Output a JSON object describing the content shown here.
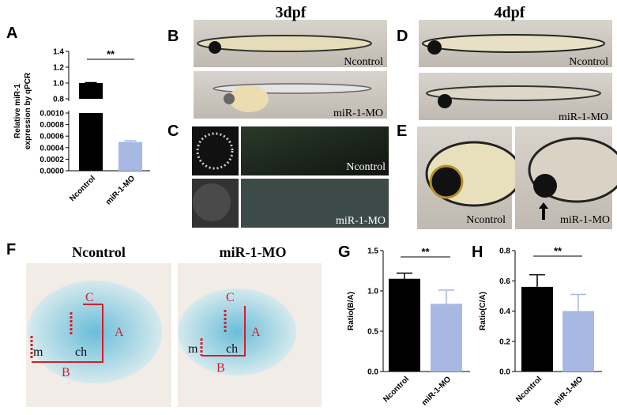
{
  "panel_letters": [
    "A",
    "B",
    "C",
    "D",
    "E",
    "F",
    "G",
    "H"
  ],
  "stage_titles": [
    "3dpf",
    "4dpf"
  ],
  "image_captions": {
    "B": [
      "Ncontrol",
      "miR-1-MO"
    ],
    "C": [
      "Ncontrol",
      "miR-1-MO"
    ],
    "D": [
      "Ncontrol",
      "miR-1-MO"
    ],
    "E": [
      "Ncontrol",
      "miR-1-MO"
    ]
  },
  "panel_F": {
    "titles": [
      "Ncontrol",
      "miR-1-MO"
    ],
    "labels": [
      "C",
      "A",
      "ch",
      "m",
      "B"
    ]
  },
  "chart_data": [
    {
      "type": "bar",
      "ylabel": [
        "Relative miR-1",
        "expression by qPCR"
      ],
      "categories": [
        "Ncontrol",
        "miR-1-MO"
      ],
      "values": [
        1.0,
        0.0005
      ],
      "errors": [
        0.005,
        2e-05
      ],
      "colors": [
        "#000000",
        "#a7b9e2"
      ],
      "ylim": [
        0,
        1.4
      ],
      "ybreak": [
        0.001,
        0.8
      ],
      "yticks": [
        {
          "value": 0,
          "label": "0.0000"
        },
        {
          "value": 0.0002,
          "label": "0.0002"
        },
        {
          "value": 0.0004,
          "label": "0.0004"
        },
        {
          "value": 0.0006,
          "label": "0.0006"
        },
        {
          "value": 0.0008,
          "label": "0.0008"
        },
        {
          "value": 0.001,
          "label": "0.0010"
        },
        {
          "value": 0.8,
          "label": "0.8"
        },
        {
          "value": 1.0,
          "label": "1.0"
        },
        {
          "value": 1.2,
          "label": "1.2"
        },
        {
          "value": 1.4,
          "label": "1.4"
        }
      ],
      "annotation": "**"
    },
    {
      "type": "bar",
      "ylabel": [
        "Ratio(B/A)"
      ],
      "categories": [
        "Ncontrol",
        "miR-1-MO"
      ],
      "values": [
        1.15,
        0.84
      ],
      "errors": [
        0.07,
        0.17
      ],
      "colors": [
        "#000000",
        "#a7b9e2"
      ],
      "ylim": [
        0,
        1.5
      ],
      "yticks": [
        {
          "value": 0,
          "label": "0.0"
        },
        0.5,
        {
          "value": 1.0,
          "label": "1.0"
        },
        1.5
      ],
      "annotation": "**"
    },
    {
      "type": "bar",
      "ylabel": [
        "Ratio(C/A)"
      ],
      "categories": [
        "Ncontrol",
        "miR-1-MO"
      ],
      "values": [
        0.56,
        0.4
      ],
      "errors": [
        0.08,
        0.11
      ],
      "colors": [
        "#000000",
        "#a7b9e2"
      ],
      "ylim": [
        0,
        0.8
      ],
      "yticks": [
        {
          "value": 0,
          "label": "0.0"
        },
        0.2,
        0.4,
        0.6,
        0.8
      ],
      "annotation": "**"
    }
  ]
}
